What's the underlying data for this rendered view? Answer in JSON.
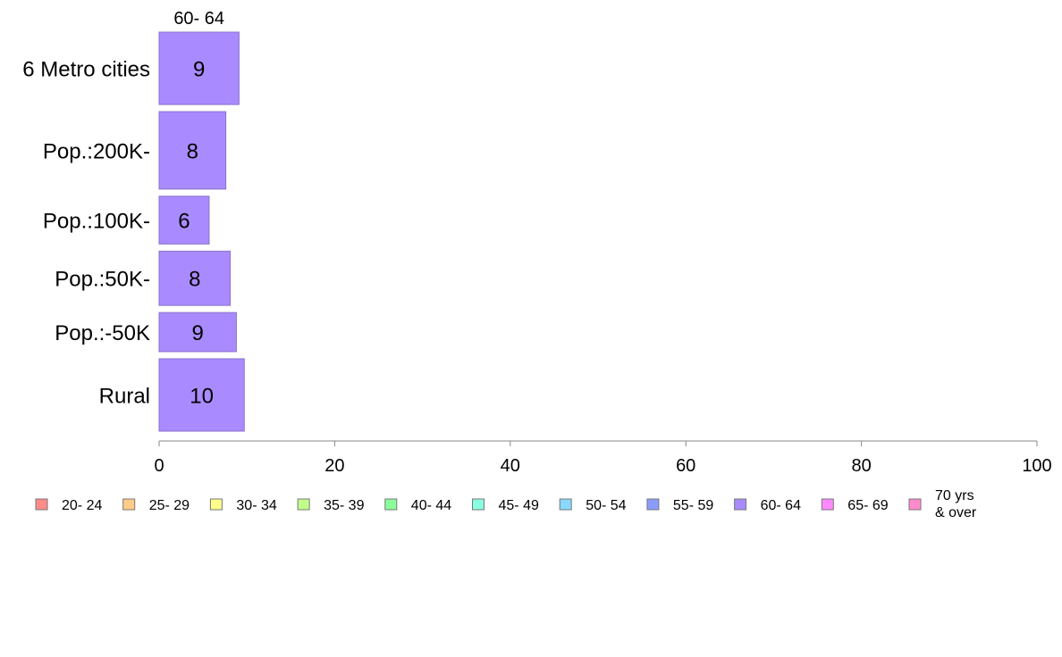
{
  "chart_data": {
    "type": "bar",
    "orientation": "horizontal",
    "title": "",
    "xlabel": "",
    "ylabel": "",
    "xlim": [
      0,
      100
    ],
    "x_ticks": [
      "0",
      "20",
      "40",
      "60",
      "80",
      "100"
    ],
    "categories": [
      "6 Metro cities",
      "Pop.:200K-",
      "Pop.:100K-",
      "Pop.:50K-",
      "Pop.:-50K",
      "Rural"
    ],
    "category_weights": [
      1,
      1.07,
      0.66,
      0.75,
      0.54,
      1.0
    ],
    "series": [
      {
        "name": "60- 64",
        "color": "#a98bff",
        "values": [
          9.1,
          7.6,
          5.7,
          8.1,
          8.8,
          9.7
        ],
        "data_labels": [
          "9",
          "8",
          "6",
          "8",
          "9",
          "10"
        ]
      }
    ],
    "legend": {
      "placement": "bottom",
      "items": [
        {
          "label": "20- 24",
          "color": "#ff8a8a"
        },
        {
          "label": "25- 29",
          "color": "#ffcc8a"
        },
        {
          "label": "30- 34",
          "color": "#ffff8a"
        },
        {
          "label": "35- 39",
          "color": "#c2ff8a"
        },
        {
          "label": "40- 44",
          "color": "#8aff9a"
        },
        {
          "label": "45- 49",
          "color": "#8affe0"
        },
        {
          "label": "50- 54",
          "color": "#8ad8ff"
        },
        {
          "label": "55- 59",
          "color": "#8a9dff"
        },
        {
          "label": "60- 64",
          "color": "#a98bff"
        },
        {
          "label": "65- 69",
          "color": "#ff8aff"
        },
        {
          "label": "70 yrs\n& over",
          "color": "#ff8acc"
        }
      ]
    },
    "grid": false
  }
}
